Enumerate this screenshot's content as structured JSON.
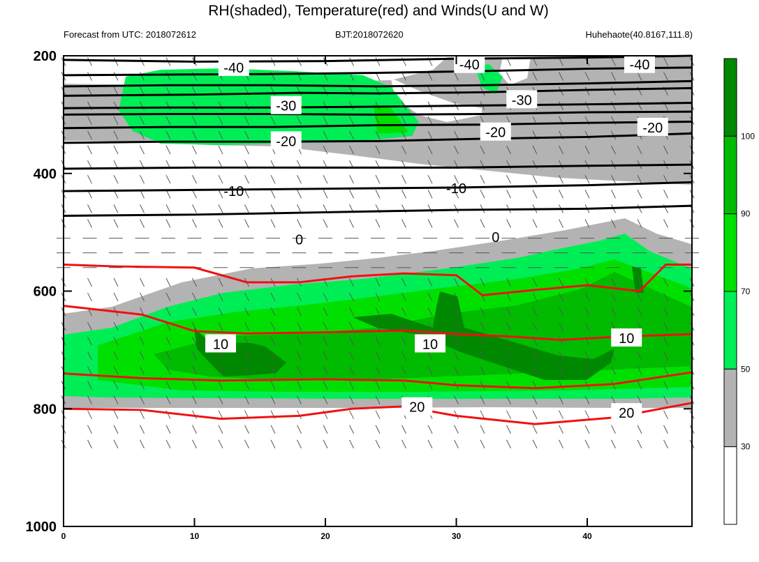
{
  "title": "RH(shaded), Temperature(red) and Winds(U and W)",
  "subtitle_left": "Forecast from UTC: 2018072612",
  "subtitle_center": "BJT:2018072620",
  "subtitle_right": "Huhehaote(40.8167,111.8)",
  "chart_data": {
    "type": "contour",
    "x_axis": {
      "range": [
        0,
        48
      ],
      "ticks": [
        0,
        10,
        20,
        30,
        40
      ]
    },
    "y_axis": {
      "range": [
        200,
        1000
      ],
      "ticks": [
        200,
        400,
        600,
        800,
        1000
      ],
      "reversed": true
    },
    "colorbar": {
      "levels": [
        30,
        50,
        70,
        90,
        100
      ],
      "colors": [
        "#ffffff",
        "#b3b3b3",
        "#00ee55",
        "#00e000",
        "#00bb00",
        "#008800"
      ]
    },
    "temperature_labels": [
      "-40",
      "-30",
      "-20",
      "-10",
      "0",
      "10",
      "20"
    ],
    "black_contours": [
      {
        "points": [
          [
            0,
            207
          ],
          [
            10,
            210
          ],
          [
            20,
            209
          ],
          [
            30,
            205
          ],
          [
            40,
            203
          ],
          [
            48,
            200
          ]
        ]
      },
      {
        "points": [
          [
            0,
            233
          ],
          [
            8,
            232
          ],
          [
            16,
            231
          ],
          [
            24,
            229
          ],
          [
            32,
            226
          ],
          [
            40,
            222
          ],
          [
            48,
            220
          ]
        ]
      },
      {
        "points": [
          [
            0,
            252
          ],
          [
            8,
            250
          ],
          [
            16,
            250
          ],
          [
            24,
            252
          ],
          [
            32,
            250
          ],
          [
            40,
            247
          ],
          [
            48,
            243
          ]
        ]
      },
      {
        "points": [
          [
            0,
            268
          ],
          [
            10,
            266
          ],
          [
            18,
            263
          ],
          [
            24,
            264
          ],
          [
            32,
            262
          ],
          [
            40,
            258
          ],
          [
            48,
            255
          ]
        ]
      },
      {
        "points": [
          [
            0,
            289
          ],
          [
            8,
            288
          ],
          [
            16,
            288
          ],
          [
            26,
            286
          ],
          [
            34,
            284
          ],
          [
            42,
            282
          ],
          [
            48,
            280
          ]
        ]
      },
      {
        "points": [
          [
            0,
            300
          ],
          [
            8,
            299
          ],
          [
            16,
            299
          ],
          [
            24,
            300
          ],
          [
            32,
            299
          ],
          [
            40,
            296
          ],
          [
            48,
            295
          ]
        ]
      },
      {
        "points": [
          [
            0,
            323
          ],
          [
            8,
            321
          ],
          [
            16,
            321
          ],
          [
            24,
            318
          ],
          [
            32,
            317
          ],
          [
            40,
            314
          ],
          [
            48,
            312
          ]
        ]
      },
      {
        "points": [
          [
            0,
            348
          ],
          [
            8,
            346
          ],
          [
            16,
            346
          ],
          [
            24,
            345
          ],
          [
            32,
            341
          ],
          [
            40,
            338
          ],
          [
            48,
            332
          ]
        ]
      },
      {
        "points": [
          [
            0,
            392
          ],
          [
            10,
            390
          ],
          [
            20,
            390
          ],
          [
            30,
            390
          ],
          [
            40,
            387
          ],
          [
            48,
            385
          ]
        ]
      },
      {
        "points": [
          [
            0,
            430
          ],
          [
            10,
            428
          ],
          [
            20,
            426
          ],
          [
            30,
            424
          ],
          [
            40,
            420
          ],
          [
            48,
            415
          ]
        ]
      },
      {
        "points": [
          [
            0,
            472
          ],
          [
            10,
            470
          ],
          [
            20,
            466
          ],
          [
            30,
            462
          ],
          [
            40,
            460
          ],
          [
            48,
            455
          ]
        ]
      }
    ],
    "red_contours": [
      {
        "points": [
          [
            0,
            555
          ],
          [
            4,
            558
          ],
          [
            10,
            560
          ],
          [
            14,
            585
          ],
          [
            18,
            585
          ],
          [
            22,
            575
          ],
          [
            26,
            570
          ],
          [
            30,
            573
          ],
          [
            32,
            607
          ],
          [
            36,
            598
          ],
          [
            40,
            590
          ],
          [
            44,
            600
          ],
          [
            46,
            555
          ],
          [
            48,
            555
          ]
        ]
      },
      {
        "points": [
          [
            0,
            625
          ],
          [
            6,
            640
          ],
          [
            10,
            668
          ],
          [
            14,
            672
          ],
          [
            20,
            670
          ],
          [
            26,
            667
          ],
          [
            30,
            673
          ],
          [
            34,
            677
          ],
          [
            38,
            683
          ],
          [
            42,
            678
          ],
          [
            48,
            673
          ]
        ]
      },
      {
        "points": [
          [
            0,
            740
          ],
          [
            6,
            748
          ],
          [
            12,
            752
          ],
          [
            20,
            750
          ],
          [
            26,
            752
          ],
          [
            30,
            760
          ],
          [
            36,
            765
          ],
          [
            42,
            758
          ],
          [
            48,
            738
          ]
        ]
      },
      {
        "points": [
          [
            0,
            800
          ],
          [
            6,
            802
          ],
          [
            12,
            817
          ],
          [
            18,
            812
          ],
          [
            22,
            800
          ],
          [
            26,
            796
          ],
          [
            30,
            812
          ],
          [
            36,
            826
          ],
          [
            42,
            815
          ],
          [
            48,
            790
          ]
        ]
      }
    ]
  }
}
